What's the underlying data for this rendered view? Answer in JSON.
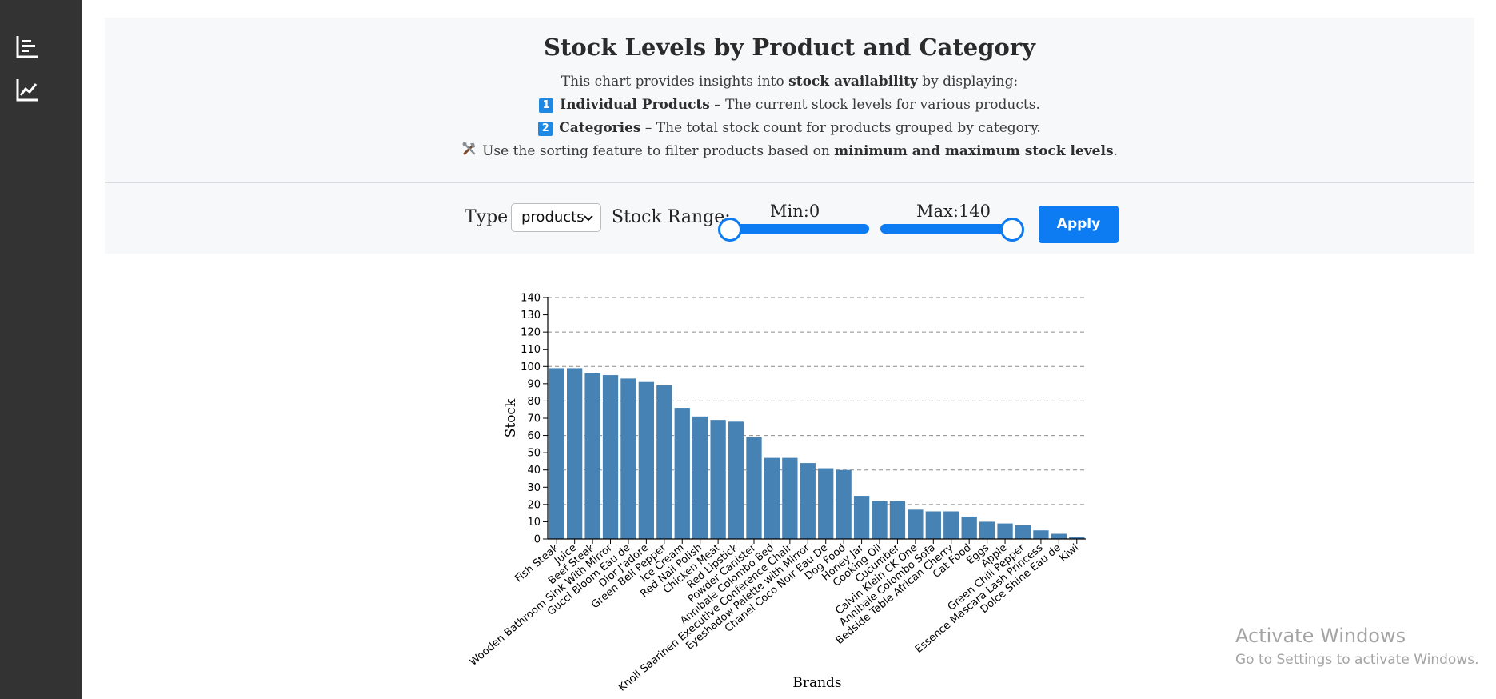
{
  "sidebar": {
    "items": [
      {
        "icon": "bar-chart-horizontal-icon"
      },
      {
        "icon": "line-chart-icon"
      }
    ]
  },
  "header": {
    "title": "Stock Levels by Product and Category",
    "intro_pre": "This chart provides insights into ",
    "intro_bold": "stock availability",
    "intro_post": " by displaying:",
    "items": [
      {
        "badge": "1",
        "bold": "Individual Products",
        "text": " – The current stock levels for various products."
      },
      {
        "badge": "2",
        "bold": "Categories",
        "text": " – The total stock count for products grouped by category."
      }
    ],
    "tip_pre": "Use the sorting feature to filter products based on ",
    "tip_bold": "minimum and maximum stock levels",
    "tip_post": "."
  },
  "controls": {
    "type_label": "Type",
    "type_value": "products",
    "range_label": "Stock Range:",
    "min_label": "Min:0",
    "max_label": "Max:140",
    "min_value": 0,
    "max_value": 140,
    "apply_label": "Apply"
  },
  "chart_data": {
    "type": "bar",
    "xlabel": "Brands",
    "ylabel": "Stock",
    "ylim": [
      0,
      140
    ],
    "yticks": [
      0,
      10,
      20,
      30,
      40,
      50,
      60,
      70,
      80,
      90,
      100,
      110,
      120,
      130,
      140
    ],
    "grid": "horizontal dashed at every 20",
    "bar_color": "#4682b4",
    "categories": [
      "Fish Steak",
      "Juice",
      "Beef Steak",
      "Wooden Bathroom Sink With Mirror",
      "Gucci Bloom Eau de",
      "Dior J'adore",
      "Green Bell Pepper",
      "Ice Cream",
      "Red Nail Polish",
      "Chicken Meat",
      "Red Lipstick",
      "Powder Canister",
      "Annibale Colombo Bed",
      "Knoll Saarinen Executive Conference Chair",
      "Eyeshadow Palette with Mirror",
      "Chanel Coco Noir Eau De",
      "Dog Food",
      "Honey Jar",
      "Cooking Oil",
      "Cucumber",
      "Calvin Klein CK One",
      "Annibale Colombo Sofa",
      "Bedside Table African Cherry",
      "Cat Food",
      "Eggs",
      "Apple",
      "Green Chili Pepper",
      "Essence Mascara Lash Princess",
      "Dolce Shine Eau de",
      "Kiwi"
    ],
    "values": [
      99,
      99,
      96,
      95,
      93,
      91,
      89,
      76,
      71,
      69,
      68,
      59,
      47,
      47,
      44,
      41,
      40,
      25,
      22,
      22,
      17,
      16,
      16,
      13,
      10,
      9,
      8,
      5,
      3,
      1
    ]
  },
  "watermark": {
    "line1": "Activate Windows",
    "line2": "Go to Settings to activate Windows."
  }
}
